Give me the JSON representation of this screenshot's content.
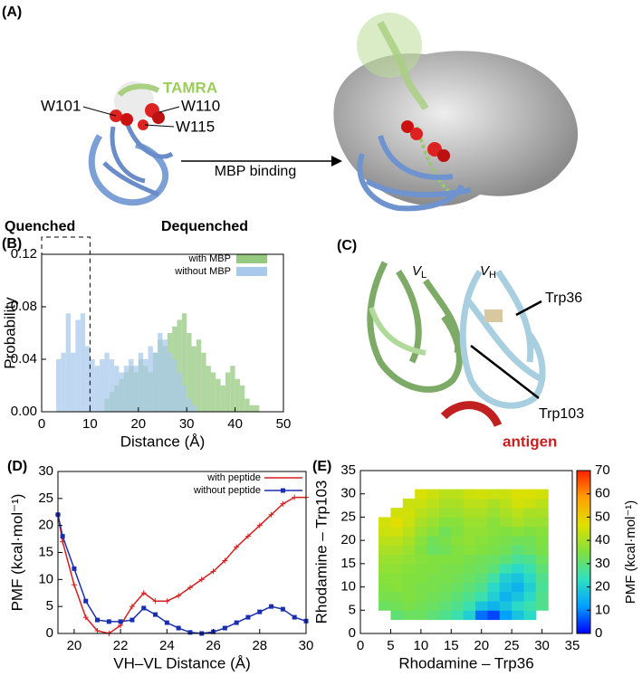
{
  "panel_a": {
    "label": "(A)",
    "dye": "TAMRA",
    "residues": [
      "W101",
      "W110",
      "W115"
    ],
    "arrow_label": "MBP binding"
  },
  "panel_c": {
    "label": "(C)",
    "domains": [
      {
        "letter": "V",
        "sub": "L"
      },
      {
        "letter": "V",
        "sub": "H"
      }
    ],
    "residues": [
      "Trp36",
      "Trp103"
    ],
    "antigen": "antigen"
  },
  "chart_data": [
    {
      "type": "histogram",
      "panel_label": "(B)",
      "x_label": "Distance (Å)",
      "y_label": "Probability",
      "quenched_label": "Quenched",
      "dequenched_label": "Dequenched",
      "quenched_range": [
        0,
        10
      ],
      "bins": [
        2,
        3,
        4,
        5,
        6,
        7,
        8,
        9,
        10,
        11,
        12,
        13,
        14,
        15,
        16,
        17,
        18,
        19,
        20,
        21,
        22,
        23,
        24,
        25,
        26,
        27,
        28,
        29,
        30,
        31,
        32,
        33,
        34,
        35,
        36,
        37,
        38,
        39,
        40,
        41,
        42,
        43,
        44,
        45,
        46,
        47,
        48
      ],
      "series": [
        {
          "name": "with MBP",
          "color": "#95c97f",
          "values": [
            0,
            0,
            0,
            0,
            0,
            0,
            0,
            0,
            0,
            0,
            0,
            0.01,
            0.015,
            0.02,
            0.025,
            0.03,
            0.035,
            0.03,
            0.04,
            0.035,
            0.03,
            0.045,
            0.055,
            0.05,
            0.06,
            0.065,
            0.07,
            0.075,
            0.06,
            0.05,
            0.055,
            0.045,
            0.035,
            0.03,
            0.025,
            0.02,
            0.03,
            0.035,
            0.025,
            0.02,
            0.01,
            0.005,
            0.005,
            0,
            0,
            0
          ]
        },
        {
          "name": "without MBP",
          "color": "#a9c9ec",
          "values": [
            0,
            0.04,
            0.045,
            0.075,
            0.045,
            0.07,
            0.075,
            0.05,
            0.04,
            0.035,
            0.04,
            0.045,
            0.04,
            0.035,
            0.03,
            0.035,
            0.04,
            0.035,
            0.045,
            0.04,
            0.05,
            0.045,
            0.06,
            0.055,
            0.045,
            0.04,
            0.03,
            0.02,
            0.01,
            0.005,
            0,
            0,
            0,
            0,
            0,
            0,
            0,
            0,
            0,
            0,
            0,
            0,
            0,
            0,
            0,
            0
          ]
        }
      ],
      "xlim": [
        0,
        50
      ],
      "xticks": [
        0,
        10,
        20,
        30,
        40,
        50
      ],
      "ylim": [
        0,
        0.12
      ],
      "yticks": [
        {
          "value": 0,
          "label": "0.00"
        },
        0.04,
        0.08,
        0.12
      ]
    },
    {
      "type": "line",
      "panel_label": "(D)",
      "x_label": "VH–VL Distance (Å)",
      "y_label": "PMF (kcal·mol⁻¹)",
      "x": [
        19.3,
        19.5,
        20,
        20.5,
        21,
        21.5,
        22,
        22.5,
        23,
        23.5,
        24,
        24.5,
        25,
        25.5,
        26,
        26.5,
        27,
        27.5,
        28,
        28.5,
        29,
        29.5,
        30
      ],
      "series": [
        {
          "name": "with peptide",
          "color": "#d42020",
          "marker": "plus",
          "values": [
            22,
            17,
            9,
            3,
            0.5,
            0,
            1.5,
            5,
            7.5,
            6,
            6,
            7,
            8.5,
            10,
            11.5,
            13.5,
            16,
            18,
            20,
            22,
            24,
            25.2,
            25.2
          ]
        },
        {
          "name": "without peptide",
          "color": "#1a2fb0",
          "marker": "square",
          "values": [
            22,
            18,
            12,
            6,
            2.5,
            2.2,
            2.2,
            2.5,
            4.7,
            3.5,
            2,
            1,
            0.2,
            0,
            0.3,
            1,
            2,
            3,
            4,
            5,
            4.5,
            3,
            2.3
          ]
        }
      ],
      "xlim": [
        19.3,
        30
      ],
      "xticks": [
        20,
        22,
        24,
        26,
        28,
        30
      ],
      "ylim": [
        0,
        30
      ],
      "yticks": [
        0,
        5,
        10,
        15,
        20,
        25,
        30
      ]
    },
    {
      "type": "heatmap",
      "panel_label": "(E)",
      "x_label": "Rhodamine – Trp36",
      "y_label": "Rhodamine – Trp103",
      "z_label": "PMF (kcal·mol⁻¹)",
      "x": [
        4,
        6,
        8,
        10,
        12,
        14,
        16,
        18,
        20,
        22,
        24,
        26,
        28,
        30
      ],
      "y": [
        4,
        6,
        8,
        10,
        12,
        14,
        16,
        18,
        20,
        22,
        24,
        26,
        28,
        30
      ],
      "z": [
        [
          null,
          30,
          32,
          32,
          30,
          28,
          25,
          20,
          8,
          5,
          12,
          18,
          22,
          null
        ],
        [
          32,
          33,
          34,
          33,
          32,
          30,
          28,
          25,
          18,
          15,
          18,
          22,
          25,
          28
        ],
        [
          34,
          34,
          35,
          34,
          33,
          32,
          30,
          28,
          25,
          20,
          15,
          18,
          22,
          28
        ],
        [
          35,
          36,
          35,
          34,
          34,
          33,
          32,
          30,
          28,
          22,
          18,
          15,
          20,
          27
        ],
        [
          36,
          36,
          35,
          35,
          34,
          34,
          33,
          32,
          30,
          26,
          20,
          18,
          22,
          28
        ],
        [
          37,
          37,
          36,
          35,
          35,
          34,
          34,
          33,
          32,
          30,
          25,
          22,
          25,
          30
        ],
        [
          38,
          38,
          37,
          36,
          35,
          35,
          35,
          34,
          33,
          32,
          30,
          27,
          28,
          32
        ],
        [
          40,
          40,
          38,
          35,
          32,
          33,
          35,
          36,
          35,
          34,
          33,
          30,
          32,
          34
        ],
        [
          42,
          42,
          40,
          36,
          33,
          34,
          36,
          37,
          36,
          35,
          34,
          33,
          33,
          35
        ],
        [
          44,
          45,
          42,
          38,
          36,
          33,
          35,
          37,
          37,
          36,
          35,
          36,
          35,
          36
        ],
        [
          45,
          47,
          44,
          40,
          38,
          36,
          36,
          38,
          38,
          36,
          38,
          40,
          38,
          38
        ],
        [
          null,
          45,
          45,
          42,
          40,
          38,
          38,
          40,
          40,
          38,
          40,
          42,
          40,
          40
        ],
        [
          null,
          null,
          44,
          44,
          42,
          40,
          40,
          42,
          42,
          40,
          42,
          45,
          44,
          42
        ],
        [
          null,
          null,
          null,
          46,
          44,
          42,
          42,
          44,
          45,
          44,
          44,
          46,
          46,
          45
        ]
      ],
      "colorscale": [
        "#0000ff",
        "#00a0ff",
        "#30e0c0",
        "#80e040",
        "#e0e000",
        "#ffa000",
        "#ff2000"
      ],
      "xlim": [
        0,
        35
      ],
      "xticks": [
        0,
        5,
        10,
        15,
        20,
        25,
        30,
        35
      ],
      "ylim": [
        0,
        35
      ],
      "yticks": [
        0,
        5,
        10,
        15,
        20,
        25,
        30,
        35
      ],
      "zlim": [
        0,
        70
      ],
      "zticks": [
        0,
        10,
        20,
        30,
        40,
        50,
        60,
        70
      ]
    }
  ]
}
